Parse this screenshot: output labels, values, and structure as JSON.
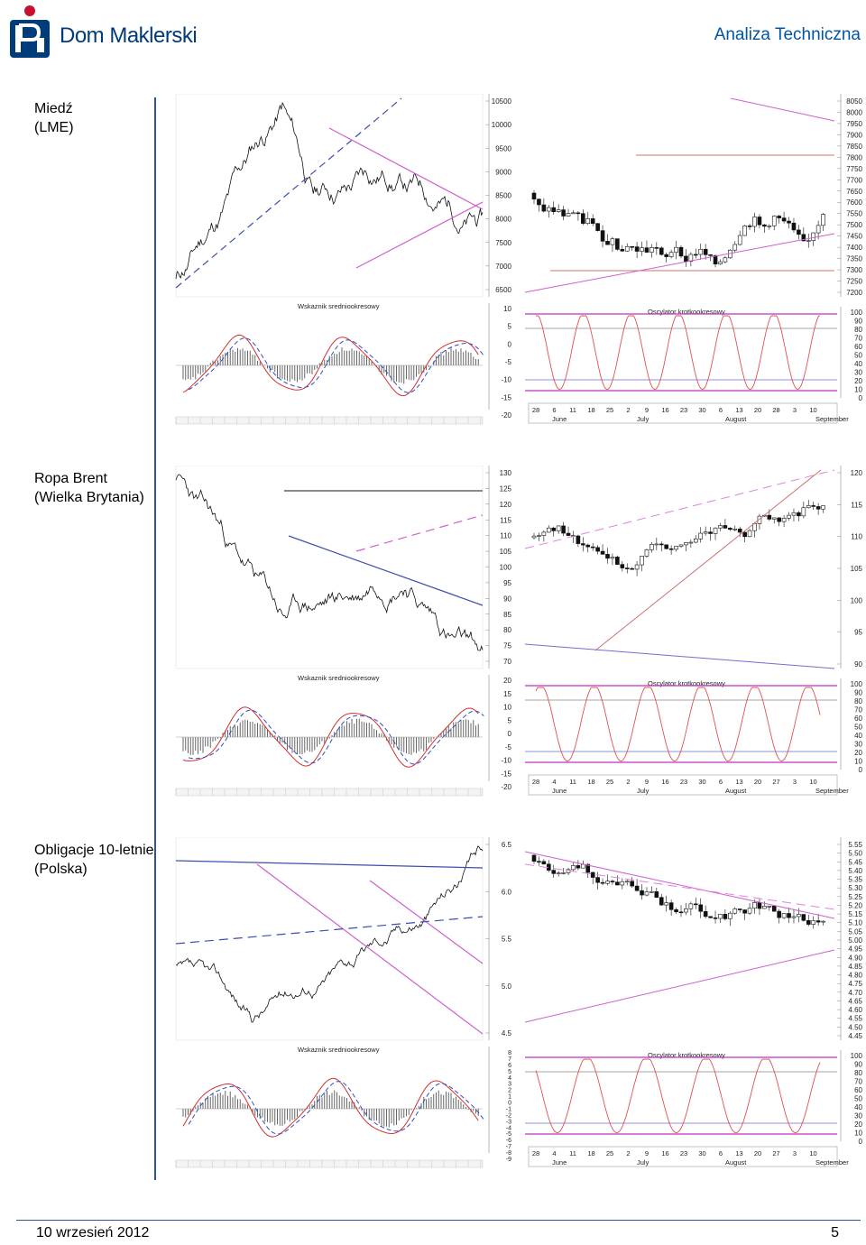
{
  "header": {
    "brand": "Dom Maklerski",
    "section": "Analiza Techniczna"
  },
  "colors": {
    "brand_blue": "#003b7a",
    "accent_red": "#c8102e",
    "trend_pink": "#d05fcf",
    "trend_blue": "#3c4fb0",
    "osc_red": "#e05050",
    "ma_red": "#d03030",
    "ma_blue": "#3050c0"
  },
  "footer": {
    "date": "10 wrzesień 2012",
    "page": "5"
  },
  "sections": [
    {
      "label_line1": "Miedź",
      "label_line2": "(LME)",
      "left_axis": [
        "10500",
        "10000",
        "9500",
        "9000",
        "8500",
        "8000",
        "7500",
        "7000",
        "6500"
      ],
      "left_osc_axis": [
        "10",
        "5",
        "0",
        "-5",
        "-10",
        "-15",
        "-20"
      ],
      "right_axis": [
        "8050",
        "8000",
        "7950",
        "7900",
        "7850",
        "7800",
        "7750",
        "7700",
        "7650",
        "7600",
        "7550",
        "7500",
        "7450",
        "7400",
        "7350",
        "7300",
        "7250",
        "7200"
      ],
      "osc_axis": [
        "100",
        "90",
        "80",
        "70",
        "60",
        "50",
        "40",
        "30",
        "20",
        "10",
        "0"
      ],
      "day_ticks": [
        "28",
        "6",
        "11",
        "18",
        "25",
        "2",
        "9",
        "16",
        "23",
        "30",
        "6",
        "13",
        "20",
        "28",
        "3",
        "10"
      ],
      "months": [
        "June",
        "July",
        "August",
        "September"
      ],
      "mid_label": "Wskaznik sredniookresowy",
      "osc_label": "Oscylator krotkookresowy"
    },
    {
      "label_line1": "Ropa Brent",
      "label_line2": "(Wielka Brytania)",
      "left_axis": [
        "130",
        "125",
        "120",
        "115",
        "110",
        "105",
        "100",
        "95",
        "90",
        "85",
        "80",
        "75",
        "70"
      ],
      "left_osc_axis": [
        "20",
        "15",
        "10",
        "5",
        "0",
        "-5",
        "-10",
        "-15",
        "-20"
      ],
      "right_axis": [
        "120",
        "115",
        "110",
        "105",
        "100",
        "95",
        "90"
      ],
      "osc_axis": [
        "100",
        "90",
        "80",
        "70",
        "60",
        "50",
        "40",
        "30",
        "20",
        "10",
        "0"
      ],
      "day_ticks": [
        "28",
        "4",
        "11",
        "18",
        "25",
        "2",
        "9",
        "16",
        "23",
        "30",
        "6",
        "13",
        "20",
        "27",
        "3",
        "10"
      ],
      "months": [
        "June",
        "July",
        "August",
        "September"
      ],
      "mid_label": "Wskaznik sredniookresowy",
      "osc_label": "Oscylator krotkookresowy"
    },
    {
      "label_line1": "Obligacje 10-letnie",
      "label_line2": "(Polska)",
      "left_axis": [
        "6.5",
        "6.0",
        "5.5",
        "5.0",
        "4.5"
      ],
      "left_osc_axis": [
        "8",
        "7",
        "6",
        "5",
        "4",
        "3",
        "2",
        "1",
        "0",
        "-1",
        "-2",
        "-3",
        "-4",
        "-5",
        "-6",
        "-7",
        "-8",
        "-9"
      ],
      "right_axis": [
        "5.55",
        "5.50",
        "5.45",
        "5.40",
        "5.35",
        "5.30",
        "5.25",
        "5.20",
        "5.15",
        "5.10",
        "5.05",
        "5.00",
        "4.95",
        "4.90",
        "4.85",
        "4.80",
        "4.75",
        "4.70",
        "4.65",
        "4.60",
        "4.55",
        "4.50",
        "4.45"
      ],
      "osc_axis": [
        "100",
        "90",
        "80",
        "70",
        "60",
        "50",
        "40",
        "30",
        "20",
        "10",
        "0"
      ],
      "day_ticks": [
        "28",
        "4",
        "11",
        "18",
        "25",
        "2",
        "9",
        "16",
        "23",
        "30",
        "6",
        "13",
        "20",
        "27",
        "3",
        "10"
      ],
      "months": [
        "June",
        "July",
        "August",
        "September"
      ],
      "mid_label": "Wskaznik sredniookresowy",
      "osc_label": "Oscylator krotkookresowy"
    }
  ]
}
